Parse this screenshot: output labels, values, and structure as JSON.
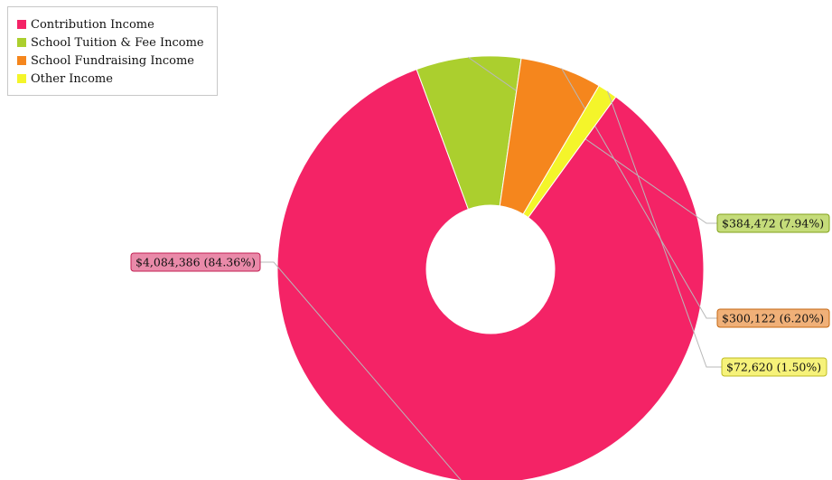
{
  "chart_data": {
    "type": "pie",
    "variant": "donut",
    "start_angle_deg": -54.0,
    "direction": "clockwise",
    "legend_position": "top-left",
    "categories": [
      "Contribution Income",
      "School Tuition & Fee Income",
      "School Fundraising Income",
      "Other Income"
    ],
    "values": [
      4084386,
      384472,
      300122,
      72620
    ],
    "percentages": [
      84.36,
      7.94,
      6.2,
      1.5
    ],
    "labels": [
      "$4,084,386 (84.36%)",
      "$384,472 (7.94%)",
      "$300,122 (6.20%)",
      "$72,620 (1.50%)"
    ],
    "colors": [
      "#f42366",
      "#abcf2e",
      "#f5861d",
      "#f4f52a"
    ],
    "label_colors": {
      "fill": [
        "#e98aa9",
        "#c5dc7a",
        "#f0b078",
        "#f6f27a"
      ],
      "stroke": [
        "#c31f52",
        "#82a11b",
        "#c56712",
        "#bdbb21"
      ]
    }
  }
}
